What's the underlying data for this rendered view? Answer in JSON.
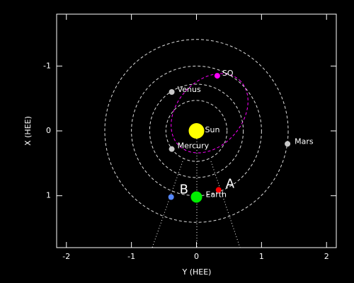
{
  "chart_data": {
    "type": "scatter",
    "xlabel": "Y (HEE)",
    "ylabel": "X (HEE)",
    "xlim": [
      -2.15,
      2.15
    ],
    "ylim": [
      -1.8,
      1.8
    ],
    "xticks": [
      -2,
      -1,
      0,
      1,
      2
    ],
    "yticks": [
      -1,
      0,
      1
    ],
    "orbits": [
      0.47,
      0.72,
      1.0,
      1.41
    ],
    "series": [
      {
        "name": "Sun",
        "color": "#ffff00",
        "size": 11,
        "x": [
          0
        ],
        "values": [
          0
        ]
      },
      {
        "name": "Mercury",
        "color": "#c8c8c8",
        "size": 4,
        "x": [
          -0.38
        ],
        "values": [
          0.28
        ]
      },
      {
        "name": "Venus",
        "color": "#c8c8c8",
        "size": 4,
        "x": [
          -0.38
        ],
        "values": [
          -0.6
        ]
      },
      {
        "name": "Earth",
        "color": "#00ee00",
        "size": 8,
        "x": [
          0
        ],
        "values": [
          1.02
        ]
      },
      {
        "name": "Mars",
        "color": "#c8c8c8",
        "size": 4,
        "x": [
          1.4
        ],
        "values": [
          0.2
        ]
      },
      {
        "name": "SO",
        "color": "#ff00ff",
        "size": 4,
        "x": [
          0.32
        ],
        "values": [
          -0.85
        ]
      },
      {
        "name": "A",
        "color": "#ff0000",
        "size": 4,
        "x": [
          0.34
        ],
        "values": [
          0.91
        ]
      },
      {
        "name": "B",
        "color": "#5588ff",
        "size": 4,
        "x": [
          -0.39
        ],
        "values": [
          1.02
        ]
      }
    ]
  }
}
